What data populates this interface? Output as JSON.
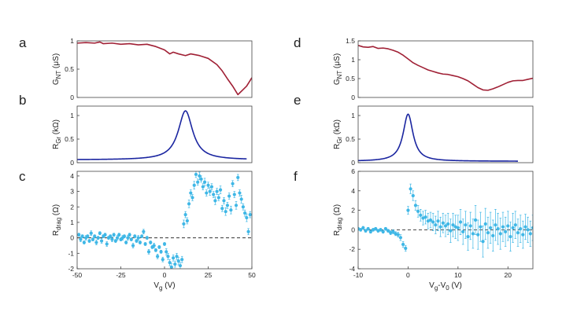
{
  "colors": {
    "nt": "#a02035",
    "gr": "#1a25a0",
    "drag": "#3fb7e6",
    "axis": "#444444",
    "text": "#222222"
  },
  "charts": [
    {
      "letter": "a",
      "type": "line",
      "ylabel": {
        "main": "G",
        "sub": "NT",
        "unit": " (μS)"
      },
      "xlim": [
        -50,
        50
      ],
      "ylim": [
        0,
        1
      ],
      "yticks": [
        0,
        0.5,
        1
      ],
      "ytick_labels": [
        "0",
        "0.5",
        "1"
      ],
      "series": [
        {
          "name": "G_NT",
          "color_key": "nt",
          "x": [
            -50,
            -45,
            -40,
            -37,
            -35,
            -30,
            -25,
            -20,
            -15,
            -10,
            -5,
            0,
            3,
            5,
            8,
            12,
            15,
            20,
            25,
            30,
            33,
            36,
            39,
            41,
            42,
            43,
            45,
            47,
            49,
            50
          ],
          "y": [
            0.96,
            0.97,
            0.96,
            0.98,
            0.95,
            0.96,
            0.94,
            0.95,
            0.93,
            0.94,
            0.9,
            0.84,
            0.77,
            0.8,
            0.77,
            0.74,
            0.77,
            0.74,
            0.69,
            0.58,
            0.47,
            0.33,
            0.2,
            0.1,
            0.05,
            0.08,
            0.14,
            0.2,
            0.3,
            0.35
          ]
        }
      ]
    },
    {
      "letter": "b",
      "type": "line",
      "ylabel": {
        "main": "R",
        "sub": "Gr",
        "unit": " (kΩ)"
      },
      "xlim": [
        -50,
        50
      ],
      "ylim": [
        0,
        1.2
      ],
      "yticks": [
        0,
        0.5,
        1
      ],
      "ytick_labels": [
        "0",
        "0.5",
        "1"
      ],
      "lorentz": {
        "x0": 12,
        "amplitude": 1.04,
        "width": 5,
        "floor": 0.06,
        "xmin": -50,
        "xmax": 47
      },
      "series": [
        {
          "name": "R_Gr",
          "color_key": "gr"
        }
      ]
    },
    {
      "letter": "c",
      "type": "scatter",
      "ylabel": {
        "main": "R",
        "sub": "drag",
        "unit": " (Ω)"
      },
      "xlim": [
        -50,
        50
      ],
      "ylim": [
        -2,
        4.3
      ],
      "yticks": [
        -2,
        -1,
        0,
        1,
        2,
        3,
        4
      ],
      "ytick_labels": [
        "-2",
        "-1",
        "0",
        "1",
        "2",
        "3",
        "4"
      ],
      "xticks": [
        -50,
        -25,
        0,
        25,
        50
      ],
      "xtick_labels": [
        "-50",
        "-25",
        "0",
        "25",
        "50"
      ],
      "xlabel": {
        "main": "V",
        "sub": "g",
        "unit": " (V)"
      },
      "dashed_zero": true,
      "series": [
        {
          "name": "R_drag",
          "color_key": "drag",
          "x": [
            -49,
            -48,
            -47,
            -46,
            -45,
            -44,
            -43,
            -42,
            -41,
            -40,
            -39,
            -38,
            -37,
            -36,
            -35,
            -34,
            -33,
            -32,
            -31,
            -30,
            -29,
            -28,
            -27,
            -26,
            -25,
            -24,
            -23,
            -22,
            -21,
            -20,
            -19,
            -18,
            -17,
            -16,
            -15,
            -14,
            -13,
            -12,
            -11,
            -10,
            -9,
            -8,
            -7,
            -6,
            -5,
            -4,
            -3,
            -2,
            -1,
            0,
            1,
            2,
            3,
            4,
            5,
            6,
            7,
            8,
            9,
            10,
            11,
            12,
            13,
            14,
            15,
            16,
            17,
            18,
            19,
            20,
            21,
            22,
            23,
            24,
            25,
            26,
            27,
            28,
            29,
            30,
            31,
            32,
            33,
            34,
            35,
            36,
            37,
            38,
            39,
            40,
            41,
            42,
            43,
            44,
            45,
            46,
            47,
            48,
            49
          ],
          "y": [
            0.2,
            -0.1,
            0.1,
            -0.3,
            0.0,
            0.1,
            -0.2,
            0.3,
            -0.1,
            0.1,
            -0.3,
            0.0,
            0.3,
            -0.2,
            0.1,
            0.2,
            -0.4,
            0.0,
            0.1,
            -0.1,
            0.2,
            -0.2,
            0.0,
            0.2,
            -0.1,
            0.0,
            0.1,
            -0.3,
            0.0,
            0.2,
            -0.1,
            -0.5,
            0.1,
            -0.2,
            0.0,
            -0.3,
            0.1,
            0.4,
            -0.4,
            0.0,
            -0.9,
            -0.3,
            -0.6,
            -0.5,
            -0.8,
            -1.2,
            -0.6,
            -0.9,
            -1.4,
            -0.4,
            -0.9,
            -1.2,
            -1.6,
            -1.9,
            -1.3,
            -1.7,
            -1.2,
            -1.5,
            -1.8,
            -1.4,
            0.9,
            1.5,
            1.1,
            2.2,
            2.9,
            2.6,
            3.4,
            4.1,
            3.6,
            4.0,
            3.8,
            3.3,
            3.6,
            2.9,
            3.4,
            3.0,
            3.3,
            2.8,
            2.4,
            3.0,
            2.6,
            3.1,
            1.9,
            2.4,
            1.7,
            2.1,
            2.7,
            1.8,
            3.5,
            2.8,
            2.1,
            3.9,
            2.9,
            2.5,
            2.0,
            1.6,
            1.3,
            0.4,
            1.5
          ],
          "err": [
            0.1,
            0.15,
            0.1,
            0.1,
            0.15,
            0.1,
            0.1,
            0.15,
            0.1,
            0.1,
            0.15,
            0.1,
            0.1,
            0.15,
            0.1,
            0.1,
            0.15,
            0.1,
            0.1,
            0.15,
            0.1,
            0.1,
            0.15,
            0.1,
            0.1,
            0.15,
            0.1,
            0.1,
            0.15,
            0.1,
            0.1,
            0.15,
            0.1,
            0.1,
            0.15,
            0.1,
            0.1,
            0.15,
            0.1,
            0.1,
            0.15,
            0.1,
            0.1,
            0.15,
            0.1,
            0.15,
            0.1,
            0.1,
            0.15,
            0.1,
            0.2,
            0.2,
            0.2,
            0.25,
            0.2,
            0.2,
            0.2,
            0.25,
            0.2,
            0.2,
            0.25,
            0.2,
            0.2,
            0.25,
            0.2,
            0.2,
            0.25,
            0.2,
            0.2,
            0.25,
            0.2,
            0.2,
            0.25,
            0.2,
            0.2,
            0.25,
            0.2,
            0.2,
            0.25,
            0.2,
            0.2,
            0.25,
            0.2,
            0.2,
            0.25,
            0.2,
            0.2,
            0.25,
            0.2,
            0.2,
            0.25,
            0.2,
            0.2,
            0.25,
            0.2,
            0.2,
            0.25,
            0.2,
            0.2
          ]
        }
      ]
    },
    {
      "letter": "d",
      "type": "line",
      "ylabel": {
        "main": "G",
        "sub": "NT",
        "unit": " (μS)"
      },
      "xlim": [
        -10,
        25
      ],
      "ylim": [
        0,
        1.5
      ],
      "yticks": [
        0,
        0.5,
        1,
        1.5
      ],
      "ytick_labels": [
        "0",
        "0.5",
        "1",
        "1.5"
      ],
      "series": [
        {
          "name": "G_NT",
          "color_key": "nt",
          "x": [
            -10,
            -9,
            -8,
            -7,
            -6,
            -5,
            -4,
            -3,
            -2,
            -1,
            0,
            1,
            2,
            3,
            4,
            5,
            6,
            7,
            8,
            9,
            10,
            11,
            12,
            13,
            14,
            15,
            16,
            17,
            18,
            19,
            20,
            21,
            22,
            23,
            24,
            25
          ],
          "y": [
            1.38,
            1.34,
            1.33,
            1.35,
            1.3,
            1.31,
            1.29,
            1.25,
            1.2,
            1.12,
            1.02,
            0.92,
            0.85,
            0.79,
            0.73,
            0.69,
            0.65,
            0.62,
            0.61,
            0.58,
            0.55,
            0.5,
            0.44,
            0.35,
            0.26,
            0.2,
            0.19,
            0.23,
            0.28,
            0.34,
            0.4,
            0.44,
            0.45,
            0.45,
            0.48,
            0.51
          ]
        }
      ]
    },
    {
      "letter": "e",
      "type": "line",
      "ylabel": {
        "main": "R",
        "sub": "Gr",
        "unit": " (kΩ)"
      },
      "xlim": [
        -10,
        25
      ],
      "ylim": [
        0,
        1.2
      ],
      "yticks": [
        0,
        0.5,
        1
      ],
      "ytick_labels": [
        "0",
        "0.5",
        "1"
      ],
      "lorentz": {
        "x0": 0,
        "amplitude": 1.0,
        "width": 1.2,
        "floor": 0.03,
        "xmin": -10,
        "xmax": 22
      },
      "series": [
        {
          "name": "R_Gr",
          "color_key": "gr"
        }
      ]
    },
    {
      "letter": "f",
      "type": "scatter",
      "ylabel": {
        "main": "R",
        "sub": "drag",
        "unit": " (Ω)"
      },
      "xlim": [
        -10,
        25
      ],
      "ylim": [
        -4,
        6
      ],
      "yticks": [
        -4,
        -2,
        0,
        2,
        4,
        6
      ],
      "ytick_labels": [
        "-4",
        "-2",
        "0",
        "2",
        "4",
        "6"
      ],
      "xticks": [
        -10,
        0,
        10,
        20
      ],
      "xtick_labels": [
        "-10",
        "0",
        "10",
        "20"
      ],
      "xlabel": {
        "main": "V",
        "sub": "g",
        "tail": "-V",
        "sub2": "0",
        "unit": " (V)"
      },
      "dashed_zero": true,
      "series": [
        {
          "name": "R_drag",
          "color_key": "drag",
          "x": [
            -10,
            -9.5,
            -9,
            -8.5,
            -8,
            -7.5,
            -7,
            -6.5,
            -6,
            -5.5,
            -5,
            -4.5,
            -4,
            -3.5,
            -3,
            -2.5,
            -2,
            -1.5,
            -1,
            -0.5,
            0,
            0.5,
            1,
            1.5,
            2,
            2.5,
            3,
            3.5,
            4,
            4.5,
            5,
            5.5,
            6,
            6.5,
            7,
            7.5,
            8,
            8.5,
            9,
            9.5,
            10,
            10.5,
            11,
            11.5,
            12,
            12.5,
            13,
            13.5,
            14,
            14.5,
            15,
            15.5,
            16,
            16.5,
            17,
            17.5,
            18,
            18.5,
            19,
            19.5,
            20,
            20.5,
            21,
            21.5,
            22,
            22.5,
            23,
            23.5,
            24,
            24.5,
            25
          ],
          "y": [
            0.1,
            0.0,
            0.2,
            -0.1,
            0.1,
            -0.2,
            0.0,
            0.1,
            -0.1,
            0.0,
            -0.2,
            0.1,
            -0.1,
            -0.3,
            -0.2,
            -0.4,
            -0.5,
            -0.8,
            -1.5,
            -1.9,
            2.0,
            4.2,
            3.5,
            2.5,
            1.9,
            1.5,
            1.2,
            1.3,
            0.9,
            1.0,
            0.8,
            0.5,
            0.9,
            0.3,
            0.7,
            0.4,
            0.6,
            -0.1,
            0.5,
            0.3,
            0.2,
            0.8,
            -0.2,
            0.5,
            -0.7,
            0.4,
            -0.4,
            1.0,
            -0.5,
            0.3,
            -1.2,
            0.6,
            -0.3,
            0.2,
            -0.6,
            0.5,
            0.1,
            -0.4,
            0.3,
            -0.2,
            0.4,
            -0.7,
            0.2,
            0.5,
            -0.3,
            0.1,
            -0.5,
            0.3,
            0.0,
            -0.4,
            0.2
          ],
          "err": [
            0.15,
            0.15,
            0.15,
            0.15,
            0.15,
            0.15,
            0.15,
            0.15,
            0.15,
            0.15,
            0.15,
            0.15,
            0.15,
            0.2,
            0.2,
            0.2,
            0.25,
            0.3,
            0.3,
            0.3,
            0.4,
            0.5,
            0.5,
            0.5,
            0.6,
            0.6,
            0.7,
            0.7,
            0.8,
            0.8,
            0.9,
            0.9,
            1.0,
            1.0,
            1.0,
            1.1,
            1.1,
            1.2,
            1.2,
            1.2,
            1.3,
            1.3,
            1.3,
            1.4,
            1.4,
            1.4,
            1.5,
            1.5,
            1.5,
            1.5,
            1.6,
            1.6,
            1.6,
            1.6,
            1.6,
            1.6,
            1.6,
            1.6,
            1.5,
            1.5,
            1.5,
            1.5,
            1.5,
            1.4,
            1.4,
            1.4,
            1.4,
            1.3,
            1.3,
            1.3,
            1.3
          ]
        }
      ]
    }
  ]
}
